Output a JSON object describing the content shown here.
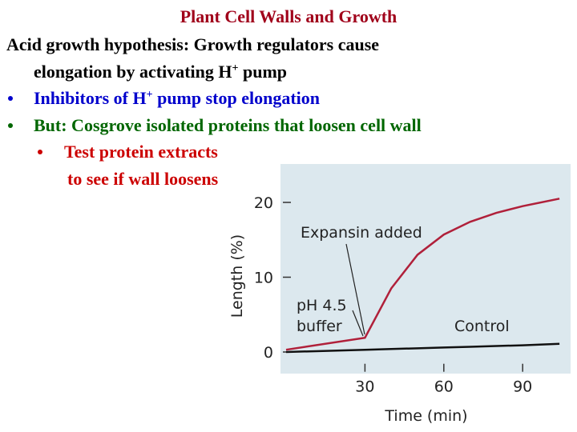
{
  "slide": {
    "title": "Plant Cell Walls and Growth",
    "lines": [
      [
        "Acid growth hypothesis: Growth regulators cause"
      ],
      [
        "elongation by activating H",
        "+",
        " pump"
      ],
      [
        "Inhibitors of H",
        "+",
        " pump stop elongation"
      ],
      [
        "But: Cosgrove isolated proteins that loosen cell wall"
      ],
      [
        "Test protein extracts"
      ],
      [
        "to see if wall loosens"
      ]
    ]
  },
  "chart_data": {
    "type": "line",
    "xlabel": "Time (min)",
    "ylabel": "Length (%)",
    "x": [
      0,
      30,
      40,
      50,
      60,
      70,
      80,
      90,
      104
    ],
    "series": [
      {
        "name": "Expansin added",
        "color": "#b0203a",
        "values": [
          0.3,
          1.9,
          8.5,
          13,
          15.7,
          17.4,
          18.6,
          19.5,
          20.5
        ]
      },
      {
        "name": "Control",
        "color": "#111111",
        "values": [
          0,
          0.3,
          0.4,
          0.5,
          0.6,
          0.7,
          0.8,
          0.9,
          1.1
        ]
      }
    ],
    "annotations": [
      "pH 4.5",
      "buffer"
    ],
    "xlim": [
      0,
      105
    ],
    "ylim": [
      -2,
      24
    ],
    "xticks": [
      30,
      60,
      90
    ],
    "yticks": [
      0,
      10,
      20
    ]
  }
}
